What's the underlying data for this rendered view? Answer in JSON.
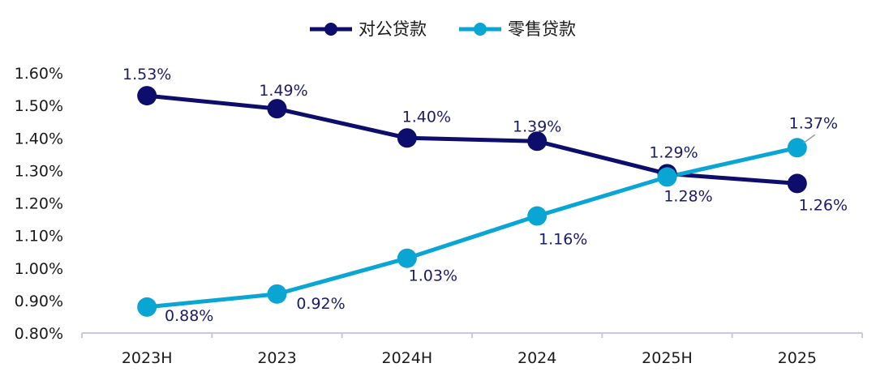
{
  "chart_data": {
    "type": "line",
    "categories": [
      "2023H",
      "2023",
      "2024H",
      "2024",
      "2025H",
      "2025"
    ],
    "series": [
      {
        "name": "对公贷款",
        "color": "#0d0d6b",
        "values": [
          1.53,
          1.49,
          1.4,
          1.39,
          1.29,
          1.26
        ],
        "labels": [
          "1.53%",
          "1.49%",
          "1.40%",
          "1.39%",
          "1.29%",
          "1.26%"
        ]
      },
      {
        "name": "零售贷款",
        "color": "#0aa6d3",
        "values": [
          0.88,
          0.92,
          1.03,
          1.16,
          1.28,
          1.37
        ],
        "labels": [
          "0.88%",
          "0.92%",
          "1.03%",
          "1.16%",
          "1.28%",
          "1.37%"
        ]
      }
    ],
    "y_ticks": [
      "0.80%",
      "0.90%",
      "1.00%",
      "1.10%",
      "1.20%",
      "1.30%",
      "1.40%",
      "1.50%",
      "1.60%"
    ],
    "ylim": [
      0.8,
      1.6
    ],
    "grid": false,
    "legend_position": "top-center",
    "axis_color": "#c8c8e6"
  }
}
